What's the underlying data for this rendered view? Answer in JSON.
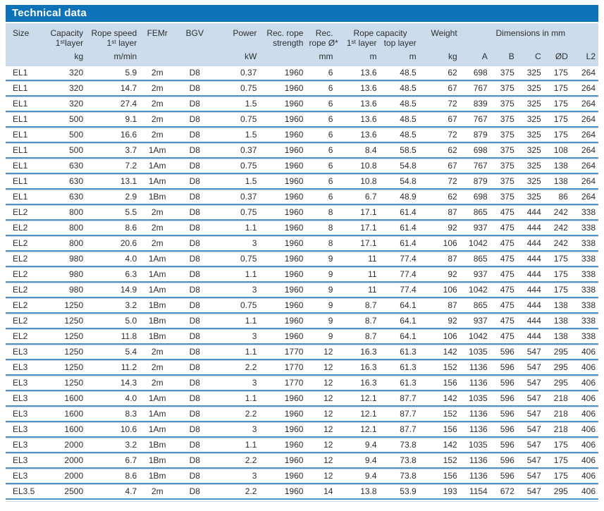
{
  "title": "Technical data",
  "colors": {
    "title_bar": "#0d72b8",
    "header_bg": "#ccdcec",
    "separator_blue": "#4f93c9",
    "separator_light": "#ccd6e0",
    "text": "#2d2d2d"
  },
  "header": {
    "groups": {
      "rope_capacity": "Rope capacity",
      "dimensions": "Dimensions in mm"
    },
    "columns": [
      {
        "id": "size",
        "line1": "Size",
        "line2": "",
        "unit": ""
      },
      {
        "id": "capacity",
        "line1": "Capacity",
        "line2": "1ˢᵗlayer",
        "unit": "kg"
      },
      {
        "id": "rope_speed",
        "line1": "Rope speed",
        "line2": "1ˢᵗ layer",
        "unit": "m/min"
      },
      {
        "id": "femr",
        "line1": "FEMr",
        "line2": "",
        "unit": ""
      },
      {
        "id": "bgv",
        "line1": "BGV",
        "line2": "",
        "unit": ""
      },
      {
        "id": "power",
        "line1": "Power",
        "line2": "",
        "unit": "kW"
      },
      {
        "id": "rope_strength",
        "line1": "Rec. rope",
        "line2": "strength",
        "unit": ""
      },
      {
        "id": "rope_dia",
        "line1": "Rec.",
        "line2": "rope Ø*",
        "unit": "mm"
      },
      {
        "id": "cap_1st_layer",
        "line1": "",
        "line2": "1ˢᵗ layer",
        "unit": "m"
      },
      {
        "id": "cap_top_layer",
        "line1": "",
        "line2": "top layer",
        "unit": "m"
      },
      {
        "id": "weight",
        "line1": "Weight",
        "line2": "",
        "unit": "kg"
      },
      {
        "id": "dim_a",
        "line1": "",
        "line2": "",
        "unit": "A"
      },
      {
        "id": "dim_b",
        "line1": "",
        "line2": "",
        "unit": "B"
      },
      {
        "id": "dim_c",
        "line1": "",
        "line2": "",
        "unit": "C"
      },
      {
        "id": "dim_od",
        "line1": "",
        "line2": "",
        "unit": "ØD"
      },
      {
        "id": "dim_l2",
        "line1": "",
        "line2": "",
        "unit": "L2"
      }
    ]
  },
  "rows": [
    [
      "EL1",
      "320",
      "5.9",
      "2m",
      "D8",
      "0.37",
      "1960",
      "6",
      "13.6",
      "48.5",
      "62",
      "698",
      "375",
      "325",
      "175",
      "264"
    ],
    [
      "EL1",
      "320",
      "14.7",
      "2m",
      "D8",
      "0.75",
      "1960",
      "6",
      "13.6",
      "48.5",
      "67",
      "767",
      "375",
      "325",
      "175",
      "264"
    ],
    [
      "EL1",
      "320",
      "27.4",
      "2m",
      "D8",
      "1.5",
      "1960",
      "6",
      "13.6",
      "48.5",
      "72",
      "839",
      "375",
      "325",
      "175",
      "264"
    ],
    [
      "EL1",
      "500",
      "9.1",
      "2m",
      "D8",
      "0.75",
      "1960",
      "6",
      "13.6",
      "48.5",
      "67",
      "767",
      "375",
      "325",
      "175",
      "264"
    ],
    [
      "EL1",
      "500",
      "16.6",
      "2m",
      "D8",
      "1.5",
      "1960",
      "6",
      "13.6",
      "48.5",
      "72",
      "879",
      "375",
      "325",
      "175",
      "264"
    ],
    [
      "EL1",
      "500",
      "3.7",
      "1Am",
      "D8",
      "0.37",
      "1960",
      "6",
      "8.4",
      "58.5",
      "62",
      "698",
      "375",
      "325",
      "108",
      "264"
    ],
    [
      "EL1",
      "630",
      "7.2",
      "1Am",
      "D8",
      "0.75",
      "1960",
      "6",
      "10.8",
      "54.8",
      "67",
      "767",
      "375",
      "325",
      "138",
      "264"
    ],
    [
      "EL1",
      "630",
      "13.1",
      "1Am",
      "D8",
      "1.5",
      "1960",
      "6",
      "10.8",
      "54.8",
      "72",
      "879",
      "375",
      "325",
      "138",
      "264"
    ],
    [
      "EL1",
      "630",
      "2.9",
      "1Bm",
      "D8",
      "0.37",
      "1960",
      "6",
      "6.7",
      "48.9",
      "62",
      "698",
      "375",
      "325",
      "86",
      "264"
    ],
    [
      "EL2",
      "800",
      "5.5",
      "2m",
      "D8",
      "0.75",
      "1960",
      "8",
      "17.1",
      "61.4",
      "87",
      "865",
      "475",
      "444",
      "242",
      "338"
    ],
    [
      "EL2",
      "800",
      "8.6",
      "2m",
      "D8",
      "1.1",
      "1960",
      "8",
      "17.1",
      "61.4",
      "92",
      "937",
      "475",
      "444",
      "242",
      "338"
    ],
    [
      "EL2",
      "800",
      "20.6",
      "2m",
      "D8",
      "3",
      "1960",
      "8",
      "17.1",
      "61.4",
      "106",
      "1042",
      "475",
      "444",
      "242",
      "338"
    ],
    [
      "EL2",
      "980",
      "4.0",
      "1Am",
      "D8",
      "0.75",
      "1960",
      "9",
      "11",
      "77.4",
      "87",
      "865",
      "475",
      "444",
      "175",
      "338"
    ],
    [
      "EL2",
      "980",
      "6.3",
      "1Am",
      "D8",
      "1.1",
      "1960",
      "9",
      "11",
      "77.4",
      "92",
      "937",
      "475",
      "444",
      "175",
      "338"
    ],
    [
      "EL2",
      "980",
      "14.9",
      "1Am",
      "D8",
      "3",
      "1960",
      "9",
      "11",
      "77.4",
      "106",
      "1042",
      "475",
      "444",
      "175",
      "338"
    ],
    [
      "EL2",
      "1250",
      "3.2",
      "1Bm",
      "D8",
      "0.75",
      "1960",
      "9",
      "8.7",
      "64.1",
      "87",
      "865",
      "475",
      "444",
      "138",
      "338"
    ],
    [
      "EL2",
      "1250",
      "5.0",
      "1Bm",
      "D8",
      "1.1",
      "1960",
      "9",
      "8.7",
      "64.1",
      "92",
      "937",
      "475",
      "444",
      "138",
      "338"
    ],
    [
      "EL2",
      "1250",
      "11.8",
      "1Bm",
      "D8",
      "3",
      "1960",
      "9",
      "8.7",
      "64.1",
      "106",
      "1042",
      "475",
      "444",
      "138",
      "338"
    ],
    [
      "EL3",
      "1250",
      "5.4",
      "2m",
      "D8",
      "1.1",
      "1770",
      "12",
      "16.3",
      "61.3",
      "142",
      "1035",
      "596",
      "547",
      "295",
      "406"
    ],
    [
      "EL3",
      "1250",
      "11.2",
      "2m",
      "D8",
      "2.2",
      "1770",
      "12",
      "16.3",
      "61.3",
      "152",
      "1136",
      "596",
      "547",
      "295",
      "406"
    ],
    [
      "EL3",
      "1250",
      "14.3",
      "2m",
      "D8",
      "3",
      "1770",
      "12",
      "16.3",
      "61.3",
      "156",
      "1136",
      "596",
      "547",
      "295",
      "406"
    ],
    [
      "EL3",
      "1600",
      "4.0",
      "1Am",
      "D8",
      "1.1",
      "1960",
      "12",
      "12.1",
      "87.7",
      "142",
      "1035",
      "596",
      "547",
      "218",
      "406"
    ],
    [
      "EL3",
      "1600",
      "8.3",
      "1Am",
      "D8",
      "2.2",
      "1960",
      "12",
      "12.1",
      "87.7",
      "152",
      "1136",
      "596",
      "547",
      "218",
      "406"
    ],
    [
      "EL3",
      "1600",
      "10.6",
      "1Am",
      "D8",
      "3",
      "1960",
      "12",
      "12.1",
      "87.7",
      "156",
      "1136",
      "596",
      "547",
      "218",
      "406"
    ],
    [
      "EL3",
      "2000",
      "3.2",
      "1Bm",
      "D8",
      "1.1",
      "1960",
      "12",
      "9.4",
      "73.8",
      "142",
      "1035",
      "596",
      "547",
      "175",
      "406"
    ],
    [
      "EL3",
      "2000",
      "6.7",
      "1Bm",
      "D8",
      "2.2",
      "1960",
      "12",
      "9.4",
      "73.8",
      "152",
      "1136",
      "596",
      "547",
      "175",
      "406"
    ],
    [
      "EL3",
      "2000",
      "8.6",
      "1Bm",
      "D8",
      "3",
      "1960",
      "12",
      "9.4",
      "73.8",
      "156",
      "1136",
      "596",
      "547",
      "175",
      "406"
    ],
    [
      "EL3.5",
      "2500",
      "4.7",
      "2m",
      "D8",
      "2.2",
      "1960",
      "14",
      "13.8",
      "53.9",
      "193",
      "1154",
      "672",
      "547",
      "295",
      "406"
    ]
  ]
}
